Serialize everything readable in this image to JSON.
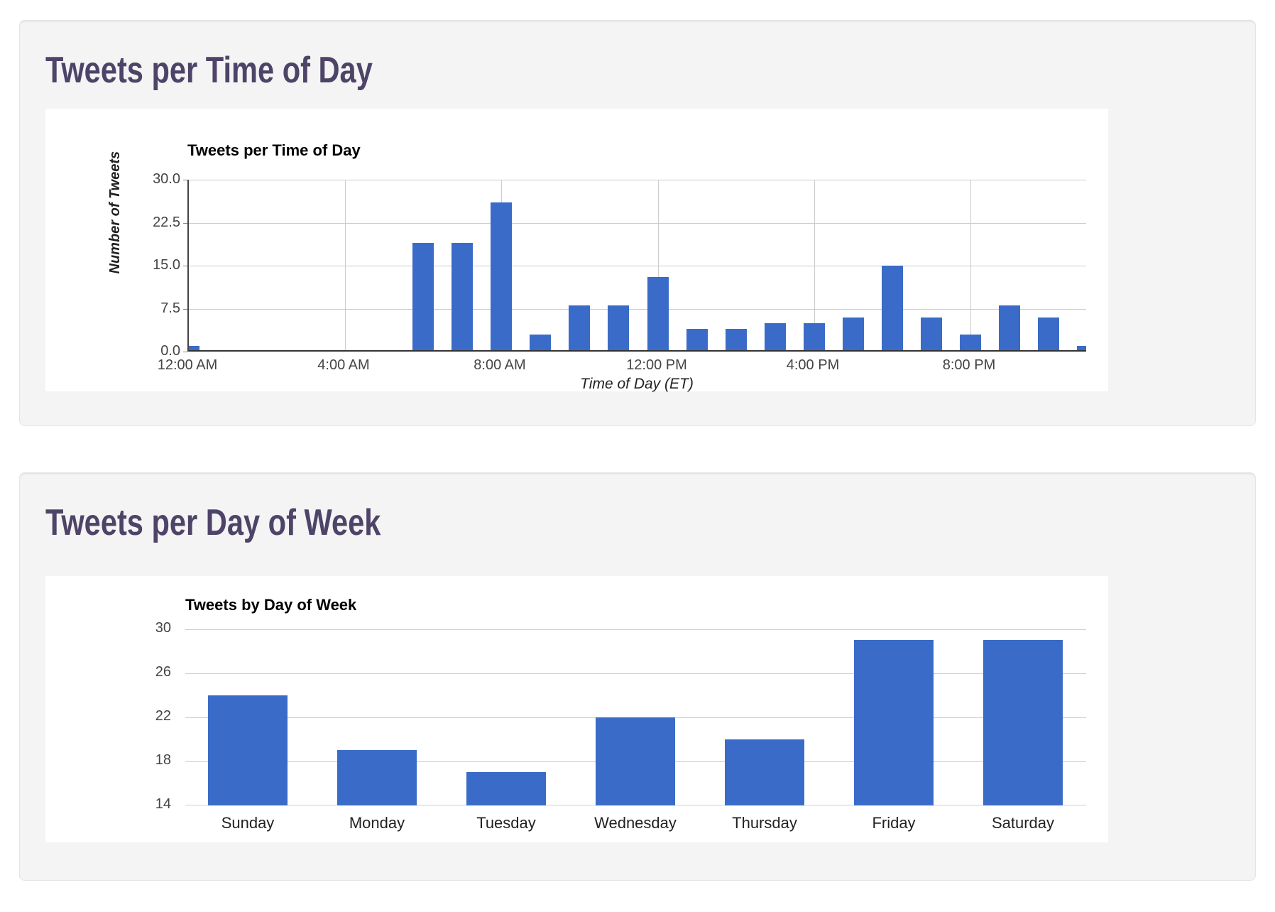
{
  "page": {
    "section1_heading": "Tweets per Time of Day",
    "section2_heading": "Tweets per Day of Week"
  },
  "colors": {
    "bar_blue": "#3a6bc8",
    "heading_purple": "#4e4468",
    "gridline_gray": "#cccccc",
    "card_gray": "#f4f4f4"
  },
  "chart_data": [
    {
      "type": "bar",
      "title": "Tweets per Time of Day",
      "xlabel": "Time of Day (ET)",
      "ylabel": "Number of Tweets",
      "x_description": "hour of day, 0 = 12:00 AM through 23 = 11:00 PM",
      "x": [
        0,
        1,
        2,
        3,
        4,
        5,
        6,
        7,
        8,
        9,
        10,
        11,
        12,
        13,
        14,
        15,
        16,
        17,
        18,
        19,
        20,
        21,
        22,
        23
      ],
      "values": [
        1,
        0,
        0,
        0,
        0,
        0,
        19,
        19,
        26,
        3,
        8,
        8,
        13,
        4,
        4,
        5,
        5,
        6,
        15,
        6,
        3,
        8,
        6,
        1
      ],
      "ylim": [
        0,
        30
      ],
      "y_ticks": [
        {
          "v": 30,
          "label": "30.0"
        },
        {
          "v": 22.5,
          "label": "22.5"
        },
        {
          "v": 15,
          "label": "15.0"
        },
        {
          "v": 7.5,
          "label": "7.5"
        },
        {
          "v": 0,
          "label": "0.0"
        }
      ],
      "x_ticks": [
        {
          "hour": 0,
          "label": "12:00 AM"
        },
        {
          "hour": 4,
          "label": "4:00 AM"
        },
        {
          "hour": 8,
          "label": "8:00 AM"
        },
        {
          "hour": 12,
          "label": "12:00 PM"
        },
        {
          "hour": 16,
          "label": "4:00 PM"
        },
        {
          "hour": 20,
          "label": "8:00 PM"
        }
      ],
      "grid": true,
      "legend": "none"
    },
    {
      "type": "bar",
      "title": "Tweets by Day of Week",
      "xlabel": "",
      "ylabel": "",
      "categories": [
        "Sunday",
        "Monday",
        "Tuesday",
        "Wednesday",
        "Thursday",
        "Friday",
        "Saturday"
      ],
      "values": [
        24,
        19,
        17,
        22,
        20,
        29,
        29
      ],
      "ylim": [
        14,
        30
      ],
      "y_ticks": [
        {
          "v": 30,
          "label": "30"
        },
        {
          "v": 26,
          "label": "26"
        },
        {
          "v": 22,
          "label": "22"
        },
        {
          "v": 18,
          "label": "18"
        },
        {
          "v": 14,
          "label": "14"
        }
      ],
      "grid": true,
      "legend": "none"
    }
  ]
}
